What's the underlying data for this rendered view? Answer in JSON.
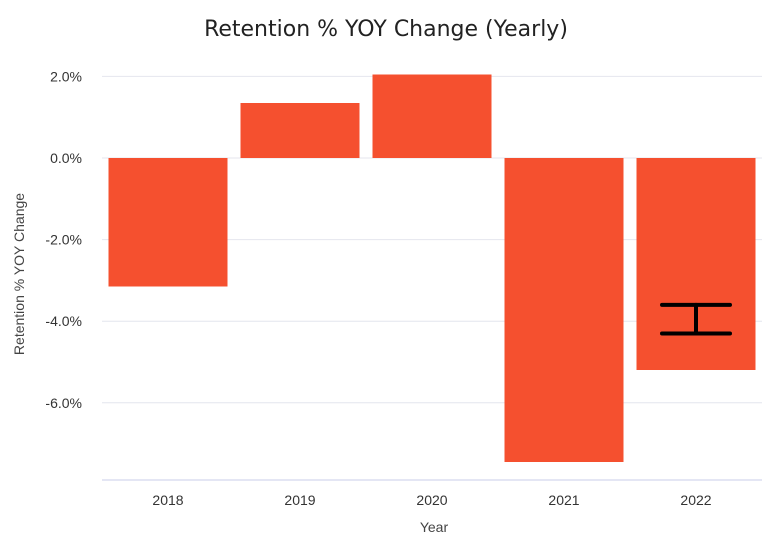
{
  "chart_data": {
    "type": "bar",
    "title": "Retention % YOY Change (Yearly)",
    "xlabel": "Year",
    "ylabel": "Retention % YOY Change",
    "categories": [
      "2018",
      "2019",
      "2020",
      "2021",
      "2022"
    ],
    "values": [
      -3.15,
      1.35,
      2.05,
      -7.45,
      -5.2
    ],
    "y_ticks": [
      2.0,
      0.0,
      -2.0,
      -4.0,
      -6.0
    ],
    "y_tick_labels": [
      "2.0%",
      "0.0%",
      "-2.0%",
      "-4.0%",
      "-6.0%"
    ],
    "ylim": [
      -7.9,
      2.2
    ],
    "grid": true,
    "bar_color": "#F5502F",
    "error_bars": [
      {
        "category": "2022",
        "low": -4.3,
        "high": -3.6
      }
    ]
  }
}
